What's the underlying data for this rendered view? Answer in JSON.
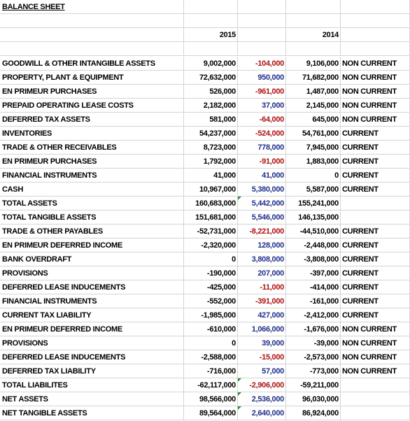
{
  "sheet": {
    "title": "BALANCE SHEET",
    "headers": {
      "year_current": "2015",
      "year_prior": "2014"
    },
    "rows": [
      {
        "label": "GOODWILL & OTHER INTANGIBLE ASSETS",
        "y2015": "9,002,000",
        "change": "-104,000",
        "y2014": "9,106,000",
        "type": "NON CURRENT",
        "sign": "neg"
      },
      {
        "label": "PROPERTY, PLANT & EQUIPMENT",
        "y2015": "72,632,000",
        "change": "950,000",
        "y2014": "71,682,000",
        "type": "NON CURRENT",
        "sign": "pos"
      },
      {
        "label": "EN PRIMEUR PURCHASES",
        "y2015": "526,000",
        "change": "-961,000",
        "y2014": "1,487,000",
        "type": "NON CURRENT",
        "sign": "neg"
      },
      {
        "label": "PREPAID OPERATING LEASE COSTS",
        "y2015": "2,182,000",
        "change": "37,000",
        "y2014": "2,145,000",
        "type": "NON CURRENT",
        "sign": "pos"
      },
      {
        "label": "DEFERRED TAX ASSETS",
        "y2015": "581,000",
        "change": "-64,000",
        "y2014": "645,000",
        "type": "NON CURRENT",
        "sign": "neg"
      },
      {
        "label": "INVENTORIES",
        "y2015": "54,237,000",
        "change": "-524,000",
        "y2014": "54,761,000",
        "type": "CURRENT",
        "sign": "neg"
      },
      {
        "label": "TRADE & OTHER RECEIVABLES",
        "y2015": "8,723,000",
        "change": "778,000",
        "y2014": "7,945,000",
        "type": "CURRENT",
        "sign": "pos"
      },
      {
        "label": "EN PRIMEUR PURCHASES",
        "y2015": "1,792,000",
        "change": "-91,000",
        "y2014": "1,883,000",
        "type": "CURRENT",
        "sign": "neg"
      },
      {
        "label": "FINANCIAL INSTRUMENTS",
        "y2015": "41,000",
        "change": "41,000",
        "y2014": "0",
        "type": "CURRENT",
        "sign": "pos"
      },
      {
        "label": "CASH",
        "y2015": "10,967,000",
        "change": "5,380,000",
        "y2014": "5,587,000",
        "type": "CURRENT",
        "sign": "pos"
      },
      {
        "label": "TOTAL ASSETS",
        "y2015": "160,683,000",
        "change": "5,442,000",
        "y2014": "155,241,000",
        "type": "",
        "sign": "pos",
        "tri": true
      },
      {
        "label": "TOTAL TANGIBLE ASSETS",
        "y2015": "151,681,000",
        "change": "5,546,000",
        "y2014": "146,135,000",
        "type": "",
        "sign": "pos"
      },
      {
        "label": "TRADE & OTHER PAYABLES",
        "y2015": "-52,731,000",
        "change": "-8,221,000",
        "y2014": "-44,510,000",
        "type": "CURRENT",
        "sign": "neg"
      },
      {
        "label": "EN PRIMEUR DEFERRED INCOME",
        "y2015": "-2,320,000",
        "change": "128,000",
        "y2014": "-2,448,000",
        "type": "CURRENT",
        "sign": "pos"
      },
      {
        "label": "BANK OVERDRAFT",
        "y2015": "0",
        "change": "3,808,000",
        "y2014": "-3,808,000",
        "type": "CURRENT",
        "sign": "pos"
      },
      {
        "label": "PROVISIONS",
        "y2015": "-190,000",
        "change": "207,000",
        "y2014": "-397,000",
        "type": "CURRENT",
        "sign": "pos"
      },
      {
        "label": "DEFERRED LEASE INDUCEMENTS",
        "y2015": "-425,000",
        "change": "-11,000",
        "y2014": "-414,000",
        "type": "CURRENT",
        "sign": "neg"
      },
      {
        "label": "FINANCIAL INSTRUMENTS",
        "y2015": "-552,000",
        "change": "-391,000",
        "y2014": "-161,000",
        "type": "CURRENT",
        "sign": "neg"
      },
      {
        "label": "CURRENT TAX LIABILITY",
        "y2015": "-1,985,000",
        "change": "427,000",
        "y2014": "-2,412,000",
        "type": "CURRENT",
        "sign": "pos"
      },
      {
        "label": "EN PRIMEUR DEFERRED INCOME",
        "y2015": "-610,000",
        "change": "1,066,000",
        "y2014": "-1,676,000",
        "type": "NON CURRENT",
        "sign": "pos"
      },
      {
        "label": "PROVISIONS",
        "y2015": "0",
        "change": "39,000",
        "y2014": "-39,000",
        "type": "NON CURRENT",
        "sign": "pos"
      },
      {
        "label": "DEFERRED LEASE INDUCEMENTS",
        "y2015": "-2,588,000",
        "change": "-15,000",
        "y2014": "-2,573,000",
        "type": "NON CURRENT",
        "sign": "neg"
      },
      {
        "label": "DEFERRED TAX LIABILITY",
        "y2015": "-716,000",
        "change": "57,000",
        "y2014": "-773,000",
        "type": "NON CURRENT",
        "sign": "pos"
      },
      {
        "label": "TOTAL LIABILITES",
        "y2015": "-62,117,000",
        "change": "-2,906,000",
        "y2014": "-59,211,000",
        "type": "",
        "sign": "neg",
        "tri": true
      },
      {
        "label": "NET ASSETS",
        "y2015": "98,566,000",
        "change": "2,536,000",
        "y2014": "96,030,000",
        "type": "",
        "sign": "pos",
        "tri": true
      },
      {
        "label": "NET TANGIBLE ASSETS",
        "y2015": "89,564,000",
        "change": "2,640,000",
        "y2014": "86,924,000",
        "type": "",
        "sign": "pos",
        "tri": true
      }
    ]
  },
  "colors": {
    "positive_change": "#1f2f8c",
    "negative_change": "#b01010",
    "gridline": "#d4d4d4",
    "indicator": "#2e8b3a"
  }
}
